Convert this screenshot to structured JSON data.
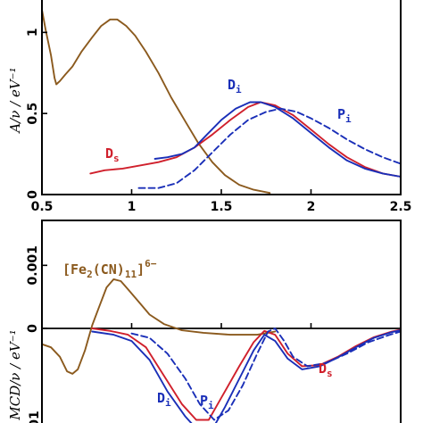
{
  "chart_data": [
    {
      "panel": "top",
      "type": "line",
      "xlabel": "",
      "ylabel": "A/ν / eV⁻¹",
      "xlim": [
        0.5,
        2.5
      ],
      "ylim": [
        0,
        1.2
      ],
      "x_ticks": [
        0.5,
        1,
        1.5,
        2,
        2.5
      ],
      "x_tick_labels": [
        "0.5",
        "1",
        "1.5",
        "2",
        "2.5"
      ],
      "y_ticks": [
        0,
        0.5,
        1
      ],
      "y_tick_labels": [
        "0",
        "0.5",
        "1"
      ],
      "series": [
        {
          "label_main": "",
          "label_sub": "",
          "color": "#8b5a1e",
          "dash": false,
          "points": [
            [
              0.5,
              1.14
            ],
            [
              0.52,
              1.02
            ],
            [
              0.55,
              0.86
            ],
            [
              0.57,
              0.72
            ],
            [
              0.58,
              0.68
            ],
            [
              0.6,
              0.7
            ],
            [
              0.63,
              0.74
            ],
            [
              0.67,
              0.79
            ],
            [
              0.72,
              0.88
            ],
            [
              0.78,
              0.97
            ],
            [
              0.83,
              1.04
            ],
            [
              0.88,
              1.08
            ],
            [
              0.92,
              1.08
            ],
            [
              0.97,
              1.04
            ],
            [
              1.02,
              0.98
            ],
            [
              1.08,
              0.88
            ],
            [
              1.15,
              0.75
            ],
            [
              1.22,
              0.6
            ],
            [
              1.3,
              0.45
            ],
            [
              1.37,
              0.32
            ],
            [
              1.45,
              0.2
            ],
            [
              1.52,
              0.12
            ],
            [
              1.6,
              0.06
            ],
            [
              1.68,
              0.03
            ],
            [
              1.77,
              0.01
            ]
          ]
        },
        {
          "label_main": "D",
          "label_sub": "s",
          "color": "#d0202c",
          "dash": false,
          "points": [
            [
              0.77,
              0.13
            ],
            [
              0.85,
              0.15
            ],
            [
              0.95,
              0.16
            ],
            [
              1.05,
              0.18
            ],
            [
              1.15,
              0.2
            ],
            [
              1.25,
              0.23
            ],
            [
              1.35,
              0.29
            ],
            [
              1.45,
              0.37
            ],
            [
              1.55,
              0.46
            ],
            [
              1.65,
              0.54
            ],
            [
              1.72,
              0.57
            ],
            [
              1.8,
              0.55
            ],
            [
              1.9,
              0.49
            ],
            [
              2.0,
              0.4
            ],
            [
              2.1,
              0.31
            ],
            [
              2.2,
              0.23
            ],
            [
              2.3,
              0.17
            ],
            [
              2.4,
              0.13
            ],
            [
              2.5,
              0.11
            ]
          ]
        },
        {
          "label_main": "D",
          "label_sub": "i",
          "color": "#1a2fb8",
          "dash": false,
          "points": [
            [
              1.13,
              0.22
            ],
            [
              1.2,
              0.23
            ],
            [
              1.28,
              0.25
            ],
            [
              1.35,
              0.29
            ],
            [
              1.42,
              0.37
            ],
            [
              1.5,
              0.46
            ],
            [
              1.58,
              0.53
            ],
            [
              1.66,
              0.57
            ],
            [
              1.72,
              0.57
            ],
            [
              1.8,
              0.54
            ],
            [
              1.9,
              0.47
            ],
            [
              2.0,
              0.38
            ],
            [
              2.1,
              0.29
            ],
            [
              2.2,
              0.21
            ],
            [
              2.3,
              0.16
            ],
            [
              2.4,
              0.13
            ],
            [
              2.5,
              0.11
            ]
          ]
        },
        {
          "label_main": "P",
          "label_sub": "i",
          "color": "#1a2fb8",
          "dash": true,
          "points": [
            [
              1.04,
              0.04
            ],
            [
              1.15,
              0.04
            ],
            [
              1.25,
              0.07
            ],
            [
              1.35,
              0.15
            ],
            [
              1.45,
              0.26
            ],
            [
              1.55,
              0.37
            ],
            [
              1.65,
              0.46
            ],
            [
              1.75,
              0.51
            ],
            [
              1.83,
              0.53
            ],
            [
              1.92,
              0.51
            ],
            [
              2.0,
              0.47
            ],
            [
              2.1,
              0.41
            ],
            [
              2.2,
              0.34
            ],
            [
              2.3,
              0.28
            ],
            [
              2.4,
              0.23
            ],
            [
              2.5,
              0.19
            ]
          ]
        }
      ]
    },
    {
      "panel": "bottom",
      "type": "line",
      "xlabel": "",
      "ylabel": "MCD/ν / eV⁻¹",
      "xlim": [
        0.5,
        2.5
      ],
      "ylim": [
        -0.0015,
        0.0015
      ],
      "y_ticks": [
        0,
        0.001
      ],
      "y_tick_labels": [
        "0",
        "0.001"
      ],
      "partial_tick_label": "01",
      "zero_line": true,
      "compound_label_main": "[Fe",
      "compound_label_sub1": "2",
      "compound_label_mid": "(CN)",
      "compound_label_sub2": "11",
      "compound_label_end": "]",
      "compound_label_sup": "6−",
      "series": [
        {
          "label_main": "",
          "label_sub": "",
          "color": "#8b5a1e",
          "dash": false,
          "points": [
            [
              0.5,
              -0.00025
            ],
            [
              0.55,
              -0.0003
            ],
            [
              0.6,
              -0.00045
            ],
            [
              0.64,
              -0.00068
            ],
            [
              0.67,
              -0.00072
            ],
            [
              0.7,
              -0.00065
            ],
            [
              0.74,
              -0.00035
            ],
            [
              0.78,
              5e-05
            ],
            [
              0.82,
              0.00035
            ],
            [
              0.86,
              0.00065
            ],
            [
              0.9,
              0.00078
            ],
            [
              0.94,
              0.00075
            ],
            [
              0.98,
              0.00062
            ],
            [
              1.04,
              0.00042
            ],
            [
              1.1,
              0.00022
            ],
            [
              1.18,
              7e-05
            ],
            [
              1.28,
              -3e-05
            ],
            [
              1.4,
              -7e-05
            ],
            [
              1.55,
              -0.0001
            ],
            [
              1.7,
              -0.0001
            ],
            [
              1.8,
              -5e-05
            ]
          ]
        },
        {
          "label_main": "D",
          "label_sub": "s",
          "color": "#d0202c",
          "dash": false,
          "points": [
            [
              0.78,
              0.0
            ],
            [
              0.88,
              -4e-05
            ],
            [
              0.98,
              -0.0001
            ],
            [
              1.08,
              -0.0003
            ],
            [
              1.18,
              -0.00075
            ],
            [
              1.28,
              -0.0012
            ],
            [
              1.36,
              -0.00145
            ],
            [
              1.43,
              -0.00145
            ],
            [
              1.5,
              -0.0011
            ],
            [
              1.6,
              -0.0006
            ],
            [
              1.68,
              -0.00022
            ],
            [
              1.74,
              -4e-05
            ],
            [
              1.8,
              -0.0001
            ],
            [
              1.87,
              -0.0004
            ],
            [
              1.95,
              -0.0006
            ],
            [
              2.05,
              -0.00058
            ],
            [
              2.15,
              -0.00045
            ],
            [
              2.25,
              -0.00028
            ],
            [
              2.35,
              -0.00014
            ],
            [
              2.45,
              -5e-05
            ],
            [
              2.5,
              -2e-05
            ]
          ]
        },
        {
          "label_main": "D",
          "label_sub": "i",
          "color": "#1a2fb8",
          "dash": false,
          "points": [
            [
              0.78,
              -5e-05
            ],
            [
              0.9,
              -0.0001
            ],
            [
              1.0,
              -0.0002
            ],
            [
              1.1,
              -0.0005
            ],
            [
              1.2,
              -0.001
            ],
            [
              1.3,
              -0.0014
            ],
            [
              1.38,
              -0.00165
            ],
            [
              1.45,
              -0.0016
            ],
            [
              1.52,
              -0.00125
            ],
            [
              1.6,
              -0.0008
            ],
            [
              1.68,
              -0.00035
            ],
            [
              1.74,
              -0.0001
            ],
            [
              1.8,
              -0.0002
            ],
            [
              1.87,
              -0.00048
            ],
            [
              1.95,
              -0.00065
            ],
            [
              2.05,
              -0.0006
            ],
            [
              2.15,
              -0.00046
            ],
            [
              2.25,
              -0.0003
            ],
            [
              2.35,
              -0.00015
            ],
            [
              2.45,
              -6e-05
            ],
            [
              2.5,
              -3e-05
            ]
          ]
        },
        {
          "label_main": "P",
          "label_sub": "i",
          "color": "#1a2fb8",
          "dash": true,
          "points": [
            [
              1.0,
              -8e-05
            ],
            [
              1.1,
              -0.00015
            ],
            [
              1.2,
              -0.0004
            ],
            [
              1.3,
              -0.0008
            ],
            [
              1.38,
              -0.0012
            ],
            [
              1.46,
              -0.00145
            ],
            [
              1.54,
              -0.0013
            ],
            [
              1.62,
              -0.0009
            ],
            [
              1.7,
              -0.0004
            ],
            [
              1.76,
              -5e-05
            ],
            [
              1.8,
              0.0
            ],
            [
              1.85,
              -0.0002
            ],
            [
              1.9,
              -0.00045
            ],
            [
              1.98,
              -0.0006
            ],
            [
              2.08,
              -0.00055
            ],
            [
              2.2,
              -0.0004
            ],
            [
              2.32,
              -0.00022
            ],
            [
              2.44,
              -0.0001
            ],
            [
              2.5,
              -5e-05
            ]
          ]
        }
      ]
    }
  ]
}
